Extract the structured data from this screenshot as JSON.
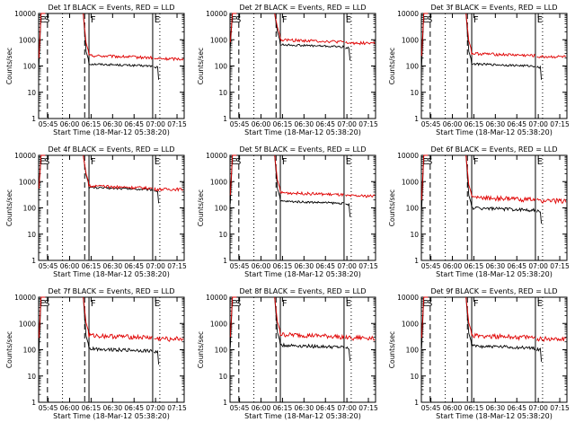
{
  "start_time_label": "Start Time (18-Mar-12 05:38:20)",
  "colors": {
    "events": "#000000",
    "lld": "#e00000",
    "axis": "#000000"
  },
  "chart_data": [
    {
      "type": "line",
      "title": "Det 1f BLACK = Events, RED = LLD",
      "xlabel": "Start Time (18-Mar-12 05:38:20)",
      "ylabel": "Counts/sec",
      "x_ticks": [
        "05:45",
        "06:00",
        "06:15",
        "06:30",
        "06:45",
        "07:00",
        "07:15"
      ],
      "y_ticks": [
        "1",
        "10",
        "100",
        "1000",
        "10000"
      ],
      "region_labels": [
        "E",
        "S",
        "F",
        "E"
      ],
      "series": [
        {
          "name": "Events",
          "color": "#000000",
          "level": 120
        },
        {
          "name": "LLD",
          "color": "#e00000",
          "level": 250
        }
      ]
    },
    {
      "type": "line",
      "title": "Det 2f BLACK = Events, RED = LLD",
      "xlabel": "Start Time (18-Mar-12 05:38:20)",
      "ylabel": "Counts/sec",
      "x_ticks": [
        "05:45",
        "06:00",
        "06:15",
        "06:30",
        "06:45",
        "07:00",
        "07:15"
      ],
      "y_ticks": [
        "1",
        "10",
        "100",
        "1000",
        "10000"
      ],
      "region_labels": [
        "E",
        "S",
        "F",
        "E"
      ],
      "series": [
        {
          "name": "Events",
          "color": "#000000",
          "level": 650
        },
        {
          "name": "LLD",
          "color": "#e00000",
          "level": 1000
        }
      ]
    },
    {
      "type": "line",
      "title": "Det 3f BLACK = Events, RED = LLD",
      "xlabel": "Start Time (18-Mar-12 05:38:20)",
      "ylabel": "Counts/sec",
      "x_ticks": [
        "05:45",
        "06:00",
        "06:15",
        "06:30",
        "06:45",
        "07:00",
        "07:15"
      ],
      "y_ticks": [
        "1",
        "10",
        "100",
        "1000",
        "10000"
      ],
      "region_labels": [
        "E",
        "S",
        "F",
        "E"
      ],
      "series": [
        {
          "name": "Events",
          "color": "#000000",
          "level": 120
        },
        {
          "name": "LLD",
          "color": "#e00000",
          "level": 300
        }
      ]
    },
    {
      "type": "line",
      "title": "Det 4f BLACK = Events, RED = LLD",
      "xlabel": "Start Time (18-Mar-12 05:38:20)",
      "ylabel": "Counts/sec",
      "x_ticks": [
        "05:45",
        "06:00",
        "06:15",
        "06:30",
        "06:45",
        "07:00",
        "07:15"
      ],
      "y_ticks": [
        "1",
        "10",
        "100",
        "1000",
        "10000"
      ],
      "region_labels": [
        "E",
        "S",
        "F",
        "E"
      ],
      "series": [
        {
          "name": "Events",
          "color": "#000000",
          "level": 600
        },
        {
          "name": "LLD",
          "color": "#e00000",
          "level": 680
        }
      ]
    },
    {
      "type": "line",
      "title": "Det 5f BLACK = Events, RED = LLD",
      "xlabel": "Start Time (18-Mar-12 05:38:20)",
      "ylabel": "Counts/sec",
      "x_ticks": [
        "05:45",
        "06:00",
        "06:15",
        "06:30",
        "06:45",
        "07:00",
        "07:15"
      ],
      "y_ticks": [
        "1",
        "10",
        "100",
        "1000",
        "10000"
      ],
      "region_labels": [
        "E",
        "S",
        "F",
        "E"
      ],
      "series": [
        {
          "name": "Events",
          "color": "#000000",
          "level": 180
        },
        {
          "name": "LLD",
          "color": "#e00000",
          "level": 380
        }
      ]
    },
    {
      "type": "line",
      "title": "Det 6f BLACK = Events, RED = LLD",
      "xlabel": "Start Time (18-Mar-12 05:38:20)",
      "ylabel": "Counts/sec",
      "x_ticks": [
        "05:45",
        "06:00",
        "06:15",
        "06:30",
        "06:45",
        "07:00",
        "07:15"
      ],
      "y_ticks": [
        "1",
        "10",
        "100",
        "1000",
        "10000"
      ],
      "region_labels": [
        "E",
        "S",
        "F",
        "E"
      ],
      "series": [
        {
          "name": "Events",
          "color": "#000000",
          "level": 100
        },
        {
          "name": "LLD",
          "color": "#e00000",
          "level": 250
        }
      ]
    },
    {
      "type": "line",
      "title": "Det 7f BLACK = Events, RED = LLD",
      "xlabel": "Start Time (18-Mar-12 05:38:20)",
      "ylabel": "Counts/sec",
      "x_ticks": [
        "05:45",
        "06:00",
        "06:15",
        "06:30",
        "06:45",
        "07:00",
        "07:15"
      ],
      "y_ticks": [
        "1",
        "10",
        "100",
        "1000",
        "10000"
      ],
      "region_labels": [
        "E",
        "S",
        "F",
        "E"
      ],
      "series": [
        {
          "name": "Events",
          "color": "#000000",
          "level": 110
        },
        {
          "name": "LLD",
          "color": "#e00000",
          "level": 350
        }
      ]
    },
    {
      "type": "line",
      "title": "Det 8f BLACK = Events, RED = LLD",
      "xlabel": "Start Time (18-Mar-12 05:38:20)",
      "ylabel": "Counts/sec",
      "x_ticks": [
        "05:45",
        "06:00",
        "06:15",
        "06:30",
        "06:45",
        "07:00",
        "07:15"
      ],
      "y_ticks": [
        "1",
        "10",
        "100",
        "1000",
        "10000"
      ],
      "region_labels": [
        "E",
        "S",
        "F",
        "E"
      ],
      "series": [
        {
          "name": "Events",
          "color": "#000000",
          "level": 150
        },
        {
          "name": "LLD",
          "color": "#e00000",
          "level": 380
        }
      ]
    },
    {
      "type": "line",
      "title": "Det 9f BLACK = Events, RED = LLD",
      "xlabel": "Start Time (18-Mar-12 05:38:20)",
      "ylabel": "Counts/sec",
      "x_ticks": [
        "05:45",
        "06:00",
        "06:15",
        "06:30",
        "06:45",
        "07:00",
        "07:15"
      ],
      "y_ticks": [
        "1",
        "10",
        "100",
        "1000",
        "10000"
      ],
      "region_labels": [
        "E",
        "S",
        "F",
        "E"
      ],
      "series": [
        {
          "name": "Events",
          "color": "#000000",
          "level": 140
        },
        {
          "name": "LLD",
          "color": "#e00000",
          "level": 350
        }
      ]
    }
  ]
}
